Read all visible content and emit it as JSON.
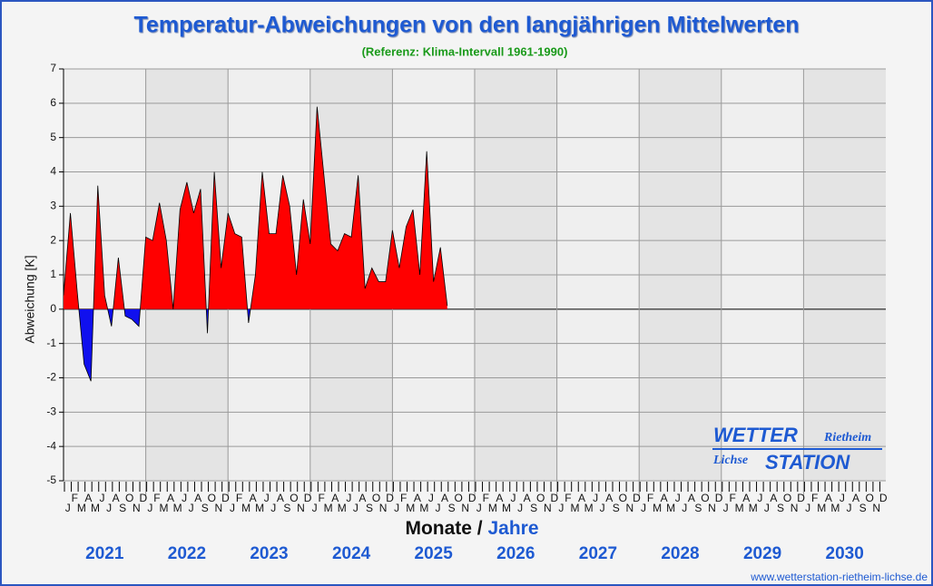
{
  "chart_data": {
    "type": "area",
    "title": "Temperatur-Abweichungen von den langjährigen Mittelwerten",
    "subtitle": "(Referenz: Klima-Intervall 1961-1990)",
    "ylabel": "Abweichung [K]",
    "xlabel": "Monate /",
    "xlabel2": "Jahre",
    "years": [
      "2021",
      "2022",
      "2023",
      "2024",
      "2025",
      "2026",
      "2027",
      "2028",
      "2029",
      "2030"
    ],
    "months": [
      "J",
      "F",
      "M",
      "A",
      "M",
      "J",
      "J",
      "A",
      "S",
      "O",
      "N",
      "D"
    ],
    "values": [
      0.4,
      2.8,
      0.5,
      -1.6,
      -2.1,
      3.6,
      0.4,
      -0.5,
      1.5,
      -0.2,
      -0.3,
      -0.5,
      2.1,
      2.0,
      3.1,
      2.0,
      0.0,
      2.9,
      3.7,
      2.8,
      3.5,
      -0.7,
      4.0,
      1.2,
      2.8,
      2.2,
      2.1,
      -0.4,
      1.0,
      4.0,
      2.2,
      2.2,
      3.9,
      3.0,
      1.0,
      3.2,
      1.9,
      5.9,
      3.9,
      1.9,
      1.7,
      2.2,
      2.1,
      3.9,
      0.6,
      1.2,
      0.8,
      0.8,
      2.3,
      1.2,
      2.4,
      2.9,
      1.0,
      4.6,
      0.8,
      1.8,
      0.1
    ],
    "positive_color": "#ff0000",
    "negative_color": "#1010ee",
    "ylim": [
      -5,
      7
    ],
    "yticks": [
      -5,
      -4,
      -3,
      -2,
      -1,
      0,
      1,
      2,
      3,
      4,
      5,
      6,
      7
    ],
    "grid": true
  },
  "logo": {
    "line1": "WETTER",
    "line1b": "Rietheim",
    "line2a": "Lichse",
    "line2": "STATION"
  },
  "url": "www.wetterstation-rietheim-lichse.de"
}
